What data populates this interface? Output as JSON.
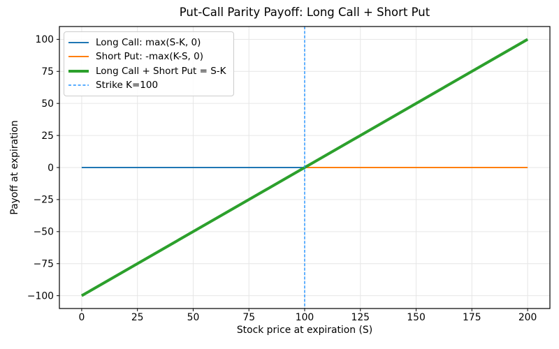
{
  "chart_data": {
    "type": "line",
    "title": "Put-Call Parity Payoff: Long Call + Short Put",
    "xlabel": "Stock price at expiration (S)",
    "ylabel": "Payoff at expiration",
    "xlim": [
      -10,
      210
    ],
    "ylim": [
      -110,
      110
    ],
    "xticks": [
      0,
      25,
      50,
      75,
      100,
      125,
      150,
      175,
      200
    ],
    "yticks": [
      -100,
      -75,
      -50,
      -25,
      0,
      25,
      50,
      75,
      100
    ],
    "grid": true,
    "grid_color": "#e6e6e6",
    "background": "#ffffff",
    "legend_position": "upper left",
    "strike_k": 100,
    "series": [
      {
        "name": "Long Call: max(S-K, 0)",
        "kind": "line",
        "color": "#1f77b4",
        "linewidth": 2,
        "linestyle": "solid",
        "x": [
          0,
          100,
          200
        ],
        "y": [
          0,
          0,
          100
        ]
      },
      {
        "name": "Short Put: -max(K-S, 0)",
        "kind": "line",
        "color": "#ff7f0e",
        "linewidth": 2,
        "linestyle": "solid",
        "x": [
          0,
          100,
          200
        ],
        "y": [
          -100,
          0,
          0
        ]
      },
      {
        "name": "Long Call + Short Put = S-K",
        "kind": "line",
        "color": "#2ca02c",
        "linewidth": 4,
        "linestyle": "solid",
        "x": [
          0,
          200
        ],
        "y": [
          -100,
          100
        ]
      },
      {
        "name": "Strike K=100",
        "kind": "vline",
        "color": "#1e90ff",
        "linewidth": 1.4,
        "linestyle": "dashed",
        "x": 100
      }
    ]
  }
}
